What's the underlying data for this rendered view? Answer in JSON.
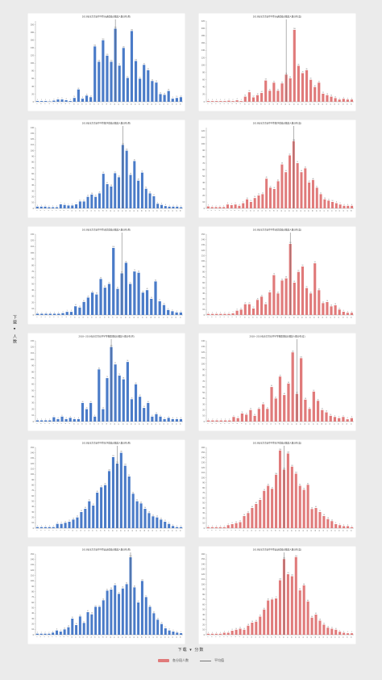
{
  "axis": {
    "y_title": "下载 ▾ 人数",
    "x_title": "下载 ▾ 分数"
  },
  "legend": {
    "bar_label": "各分段人数",
    "line_label": "平均值"
  },
  "colors": {
    "left": "#4a7bc8",
    "right": "#e07a7a",
    "mean_line": "#666666"
  },
  "chart_data": [
    {
      "type": "bar",
      "title": "2019年东方市初中学生英语成绩分数段人数分布(男)",
      "ylim": [
        0,
        210
      ],
      "mean_index": 19,
      "values": [
        2,
        2,
        2,
        1,
        3,
        6,
        6,
        4,
        2,
        10,
        32,
        8,
        16,
        12,
        144,
        104,
        160,
        120,
        104,
        190,
        94,
        140,
        62,
        184,
        106,
        60,
        96,
        82,
        54,
        50,
        20,
        18,
        28,
        8,
        10,
        12
      ]
    },
    {
      "type": "bar",
      "title": "2019年东方市初中学生英语成绩分数段人数分布(女)",
      "ylim": [
        0,
        220
      ],
      "mean_index": 19,
      "values": [
        2,
        2,
        2,
        2,
        2,
        3,
        2,
        4,
        2,
        14,
        26,
        12,
        18,
        24,
        58,
        30,
        52,
        30,
        50,
        74,
        64,
        196,
        98,
        78,
        86,
        60,
        40,
        52,
        22,
        18,
        14,
        10,
        6,
        8,
        6,
        6
      ]
    },
    {
      "type": "bar",
      "title": "2019年东方市初中学生数学成绩分数段人数分布(男)",
      "ylim": [
        0,
        140
      ],
      "mean_index": 22,
      "values": [
        3,
        3,
        3,
        2,
        2,
        2,
        7,
        6,
        5,
        5,
        7,
        12,
        12,
        20,
        24,
        20,
        26,
        60,
        42,
        38,
        61,
        54,
        110,
        100,
        58,
        82,
        48,
        62,
        34,
        26,
        21,
        8,
        6,
        4,
        3,
        3,
        3,
        2
      ]
    },
    {
      "type": "bar",
      "title": "2019年东方市初中学生数学成绩分数段人数分布(女)",
      "ylim": [
        0,
        125
      ],
      "mean_index": 22,
      "values": [
        3,
        2,
        2,
        2,
        2,
        6,
        5,
        6,
        4,
        8,
        14,
        10,
        16,
        20,
        22,
        46,
        32,
        30,
        42,
        68,
        56,
        82,
        104,
        70,
        56,
        62,
        40,
        44,
        32,
        22,
        14,
        12,
        10,
        8,
        6,
        4,
        4,
        4
      ]
    },
    {
      "type": "bar",
      "title": "2019年东方市初中学生语文成绩分数段人数分布(男)",
      "ylim": [
        0,
        130
      ],
      "mean_index": 20,
      "values": [
        2,
        2,
        2,
        2,
        2,
        2,
        3,
        5,
        5,
        14,
        12,
        21,
        28,
        36,
        33,
        58,
        44,
        50,
        108,
        42,
        67,
        84,
        50,
        70,
        68,
        36,
        40,
        26,
        54,
        22,
        16,
        8,
        6,
        4,
        4
      ]
    },
    {
      "type": "bar",
      "title": "2019年东方市初中学生语文成绩分数段人数分布(女)",
      "ylim": [
        0,
        150
      ],
      "mean_index": 20,
      "values": [
        2,
        2,
        2,
        2,
        2,
        2,
        3,
        8,
        10,
        20,
        20,
        12,
        28,
        34,
        20,
        42,
        74,
        40,
        64,
        68,
        132,
        60,
        80,
        90,
        50,
        40,
        96,
        46,
        22,
        24,
        16,
        18,
        10,
        6,
        4,
        4
      ]
    },
    {
      "type": "bar",
      "title": "2018~2019年东方市初中学生物理成绩分数段人数分布(男)",
      "ylim": [
        0,
        130
      ],
      "mean_index": 18,
      "values": [
        2,
        2,
        2,
        2,
        7,
        4,
        8,
        4,
        6,
        4,
        4,
        30,
        20,
        30,
        8,
        84,
        20,
        70,
        120,
        92,
        74,
        68,
        96,
        36,
        60,
        40,
        22,
        30,
        8,
        12,
        8,
        4,
        6,
        4,
        4,
        4
      ]
    },
    {
      "type": "bar",
      "title": "2018~2019年东方市初中学生物理成绩分数段人数分布(女)",
      "ylim": [
        0,
        140
      ],
      "mean_index": 21,
      "values": [
        2,
        2,
        2,
        2,
        2,
        2,
        8,
        6,
        14,
        12,
        20,
        10,
        22,
        30,
        22,
        60,
        40,
        78,
        46,
        66,
        120,
        48,
        110,
        38,
        22,
        52,
        36,
        20,
        16,
        10,
        8,
        6,
        8,
        4,
        6
      ]
    },
    {
      "type": "bar",
      "title": "2019年东方市初中学生化学成绩分数段人数分布(男)",
      "ylim": [
        0,
        150
      ],
      "mean_index": 20,
      "values": [
        2,
        2,
        2,
        2,
        2,
        8,
        8,
        10,
        12,
        16,
        20,
        30,
        36,
        50,
        42,
        66,
        76,
        80,
        106,
        132,
        120,
        140,
        116,
        96,
        64,
        50,
        46,
        36,
        28,
        22,
        20,
        16,
        12,
        8,
        4,
        2,
        2
      ]
    },
    {
      "type": "bar",
      "title": "2019年东方市初中学生化学成绩分数段人数分布(女)",
      "ylim": [
        0,
        160
      ],
      "mean_index": 19,
      "values": [
        2,
        2,
        2,
        2,
        2,
        6,
        8,
        10,
        12,
        24,
        30,
        40,
        48,
        56,
        74,
        84,
        78,
        106,
        154,
        116,
        148,
        122,
        108,
        84,
        76,
        86,
        38,
        40,
        32,
        24,
        18,
        14,
        8,
        6,
        4,
        4,
        2
      ]
    },
    {
      "type": "bar",
      "title": "2019年东方市初中学生政治成绩分数段人数分布(男)",
      "ylim": [
        0,
        150
      ],
      "mean_index": 24,
      "values": [
        2,
        2,
        2,
        2,
        4,
        8,
        6,
        10,
        14,
        30,
        18,
        34,
        22,
        42,
        38,
        52,
        52,
        64,
        82,
        84,
        92,
        76,
        86,
        94,
        144,
        88,
        60,
        100,
        70,
        52,
        40,
        28,
        20,
        12,
        8,
        6,
        4,
        3
      ]
    },
    {
      "type": "bar",
      "title": "2019年东方市初中学生政治成绩分数段人数分布(女)",
      "ylim": [
        0,
        160
      ],
      "mean_index": 19,
      "values": [
        2,
        2,
        2,
        2,
        4,
        4,
        8,
        10,
        12,
        10,
        18,
        24,
        26,
        36,
        50,
        68,
        70,
        72,
        108,
        150,
        120,
        116,
        154,
        88,
        98,
        66,
        34,
        40,
        28,
        20,
        14,
        12,
        10,
        6,
        4,
        3,
        3
      ]
    }
  ]
}
